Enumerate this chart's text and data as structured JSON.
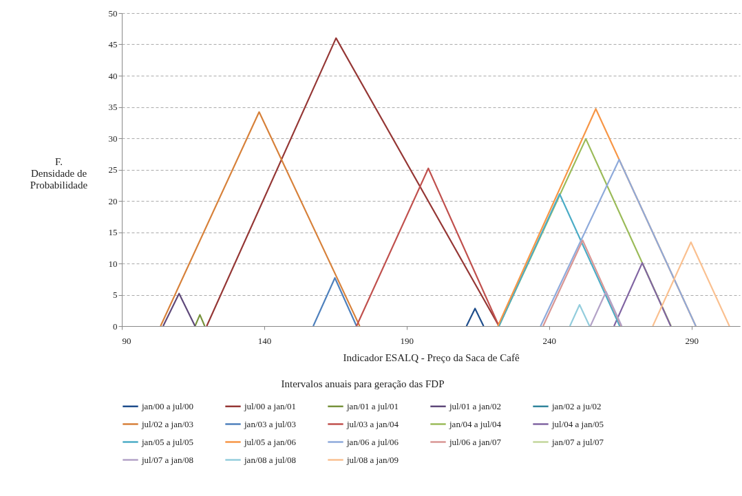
{
  "chart_data": {
    "type": "line",
    "xlabel": "Indicador ESALQ - Preço da Saca de Cafê",
    "ylabel": "F.\nDensidade de\nProbabilidade",
    "legend_title": "Intervalos anuais para geração das FDP",
    "xlim": [
      90,
      307
    ],
    "xticks": [
      90,
      140,
      190,
      240,
      290
    ],
    "ylim": [
      0,
      50
    ],
    "yticks": [
      0,
      5,
      10,
      15,
      20,
      25,
      30,
      35,
      40,
      45,
      50
    ],
    "grid": "y",
    "legend": "bottom",
    "marker": "none",
    "line_style": "solid",
    "series": [
      {
        "name": "jan/00 a jul/00",
        "color": "#1f4e8c",
        "x": [
          211,
          214,
          217
        ],
        "values": [
          0,
          2.8,
          0
        ]
      },
      {
        "name": "jul/00 a jan/01",
        "color": "#953735",
        "x": [
          119.8,
          165.2,
          222.4
        ],
        "values": [
          0,
          46,
          0
        ]
      },
      {
        "name": "jan/01 a jul/01",
        "color": "#77933c",
        "x": [
          115.7,
          117.4,
          119.1
        ],
        "values": [
          0,
          1.8,
          0
        ]
      },
      {
        "name": "jul/01 a jan/02",
        "color": "#5f497a",
        "x": [
          104.5,
          110.1,
          115.7
        ],
        "values": [
          0,
          5.2,
          0
        ]
      },
      {
        "name": "jan/02 a ju/02",
        "color": "#31859c",
        "x": [
          null,
          null,
          null
        ],
        "values": [
          null,
          null,
          null
        ]
      },
      {
        "name": "jul/02 a jan/03",
        "color": "#d7813a",
        "x": [
          103.6,
          138.2,
          173.5
        ],
        "values": [
          0,
          34.2,
          0
        ]
      },
      {
        "name": "jan/03 a jul/03",
        "color": "#4f81bd",
        "x": [
          157.2,
          164.8,
          172.4
        ],
        "values": [
          0,
          7.7,
          0
        ]
      },
      {
        "name": "jul/03 a jan/04",
        "color": "#c0504d",
        "x": [
          172.4,
          197.6,
          222.4
        ],
        "values": [
          0,
          25.2,
          0
        ]
      },
      {
        "name": "jan/04 a jul/04",
        "color": "#9bbb59",
        "x": [
          222.4,
          252.9,
          282.8
        ],
        "values": [
          0,
          29.9,
          0
        ]
      },
      {
        "name": "jul/04 a jan/05",
        "color": "#8064a2",
        "x": [
          262.8,
          272.7,
          282.7
        ],
        "values": [
          0,
          10.1,
          0
        ]
      },
      {
        "name": "jan/05 a jul/05",
        "color": "#4bacc6",
        "x": [
          222.4,
          243.7,
          264.8
        ],
        "values": [
          0,
          21.1,
          0
        ]
      },
      {
        "name": "jul/05 a jan/06",
        "color": "#f79646",
        "x": [
          222,
          256.4,
          291.5
        ],
        "values": [
          0,
          34.7,
          0
        ]
      },
      {
        "name": "jan/06 a jul/06",
        "color": "#8eaadb",
        "x": [
          237,
          264.6,
          291.5
        ],
        "values": [
          0,
          26.6,
          0
        ]
      },
      {
        "name": "jul/06 a jan/07",
        "color": "#d99694",
        "x": [
          237.9,
          251.8,
          265.3
        ],
        "values": [
          0,
          13.7,
          0
        ]
      },
      {
        "name": "jan/07 a jul/07",
        "color": "#c3d69b",
        "x": [
          null,
          null,
          null
        ],
        "values": [
          null,
          null,
          null
        ]
      },
      {
        "name": "jul/07 a jan/08",
        "color": "#b3a2c7",
        "x": [
          254.5,
          260,
          265.5
        ],
        "values": [
          0,
          5.5,
          0
        ]
      },
      {
        "name": "jan/08 a jul/08",
        "color": "#93cddd",
        "x": [
          247.3,
          250.7,
          254.2
        ],
        "values": [
          0,
          3.4,
          0
        ]
      },
      {
        "name": "jul/08 a jan/09",
        "color": "#fac090",
        "x": [
          276.4,
          289.8,
          303.3
        ],
        "values": [
          0,
          13.4,
          0
        ]
      }
    ]
  }
}
